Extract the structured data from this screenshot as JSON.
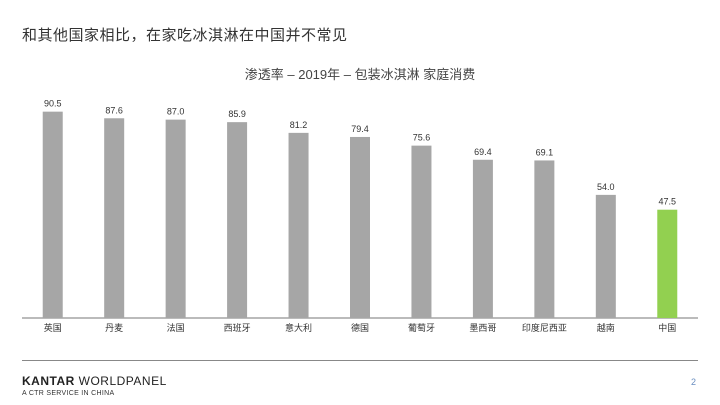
{
  "headline": "和其他国家相比，在家吃冰淇淋在中国并不常见",
  "footer": {
    "brand_bold": "KANTAR",
    "brand_rest": " WORLDPANEL",
    "tagline": "A CTR SERVICE IN CHINA",
    "page_number": "2"
  },
  "colors": {
    "bar_default": "#a6a6a6",
    "bar_highlight": "#92d050",
    "axis": "#777777"
  },
  "chart_data": {
    "type": "bar",
    "title": "渗透率 – 2019年 – 包装冰淇淋 家庭消费",
    "categories": [
      "英国",
      "丹麦",
      "法国",
      "西班牙",
      "意大利",
      "德国",
      "葡萄牙",
      "墨西哥",
      "印度尼西亚",
      "越南",
      "中国"
    ],
    "values": [
      90.5,
      87.6,
      87.0,
      85.9,
      81.2,
      79.4,
      75.6,
      69.4,
      69.1,
      54.0,
      47.5
    ],
    "value_labels": [
      "90.5",
      "87.6",
      "87.0",
      "85.9",
      "81.2",
      "79.4",
      "75.6",
      "69.4",
      "69.1",
      "54.0",
      "47.5"
    ],
    "highlight": "中国",
    "ylim": [
      0,
      100
    ],
    "xlabel": "",
    "ylabel": "",
    "grid": false
  }
}
